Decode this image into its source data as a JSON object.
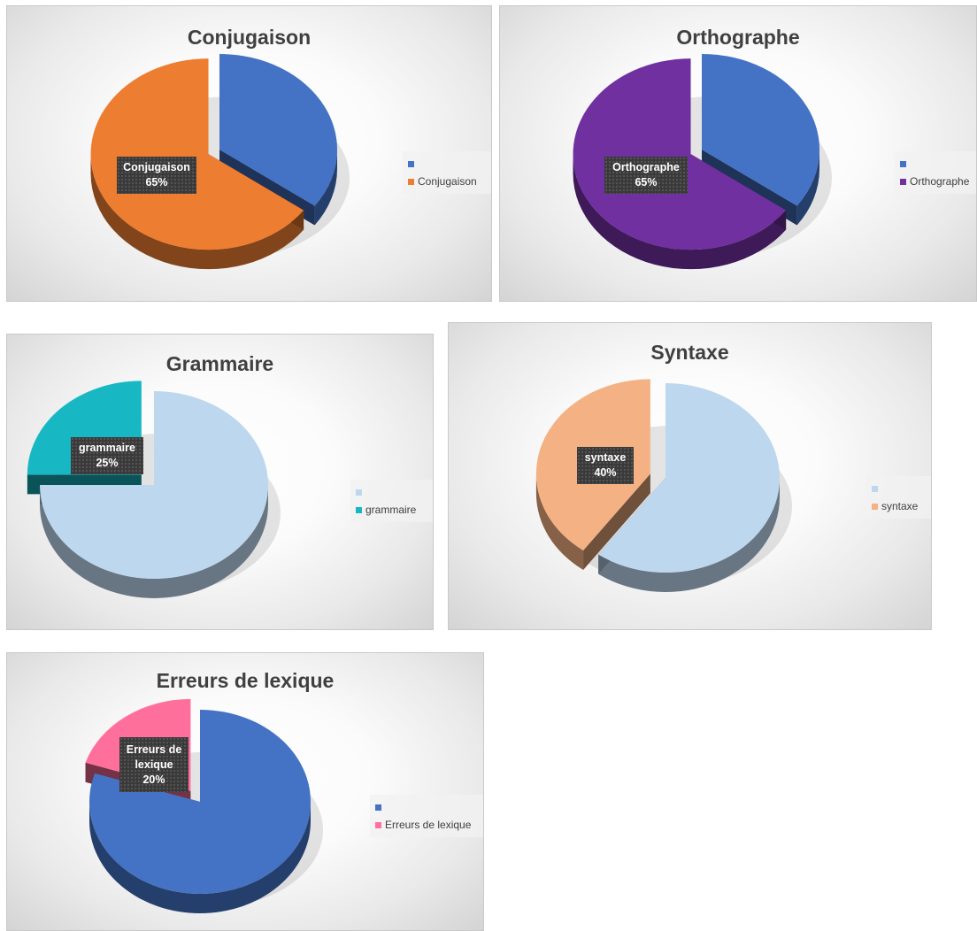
{
  "chart_data": [
    {
      "type": "pie",
      "title": "Conjugaison",
      "slices": [
        {
          "label": "",
          "value": 35,
          "color": "#4472c4"
        },
        {
          "label": "Conjugaison",
          "value": 65,
          "color": "#ed7d31"
        }
      ],
      "data_label": {
        "name": "Conjugaison",
        "value": "65%"
      },
      "legend": [
        "",
        "Conjugaison"
      ],
      "legend_position": "right"
    },
    {
      "type": "pie",
      "title": "Orthographe",
      "slices": [
        {
          "label": "",
          "value": 35,
          "color": "#4472c4"
        },
        {
          "label": "Orthographe",
          "value": 65,
          "color": "#7030a0"
        }
      ],
      "data_label": {
        "name": "Orthographe",
        "value": "65%"
      },
      "legend": [
        "",
        "Orthographe"
      ],
      "legend_position": "right"
    },
    {
      "type": "pie",
      "title": "Grammaire",
      "slices": [
        {
          "label": "",
          "value": 75,
          "color": "#bdd7ee"
        },
        {
          "label": "grammaire",
          "value": 25,
          "color": "#17b8c4"
        }
      ],
      "data_label": {
        "name": "grammaire",
        "value": "25%"
      },
      "legend": [
        "",
        "grammaire"
      ],
      "legend_position": "right"
    },
    {
      "type": "pie",
      "title": "Syntaxe",
      "slices": [
        {
          "label": "",
          "value": 60,
          "color": "#bdd7ee"
        },
        {
          "label": "syntaxe",
          "value": 40,
          "color": "#f4b183"
        }
      ],
      "data_label": {
        "name": "syntaxe",
        "value": "40%"
      },
      "legend": [
        "",
        "syntaxe"
      ],
      "legend_position": "right"
    },
    {
      "type": "pie",
      "title": "Erreurs de lexique",
      "slices": [
        {
          "label": "",
          "value": 80,
          "color": "#4472c4"
        },
        {
          "label": "Erreurs de lexique",
          "value": 20,
          "color": "#ff6f9c"
        }
      ],
      "data_label": {
        "name": "Erreurs de lexique",
        "value": "20%"
      },
      "legend": [
        "",
        "Erreurs de lexique"
      ],
      "legend_position": "right"
    }
  ]
}
